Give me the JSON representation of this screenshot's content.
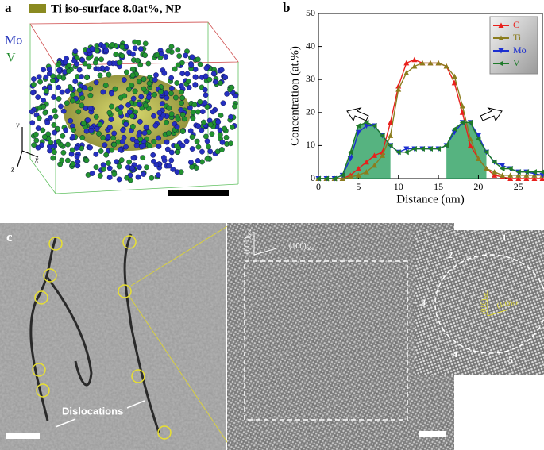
{
  "panel_a": {
    "label": "a",
    "legend": "Ti iso-surface 8.0at%, NP",
    "species": [
      "Mo",
      "V"
    ],
    "axes": [
      "y",
      "x",
      "z"
    ]
  },
  "chart_data": {
    "type": "line",
    "label": "b",
    "xlabel": "Distance (nm)",
    "ylabel": "Concentration (at.%)",
    "x": [
      0,
      1,
      2,
      3,
      4,
      5,
      6,
      7,
      8,
      9,
      10,
      11,
      12,
      13,
      14,
      15,
      16,
      17,
      18,
      19,
      20,
      21,
      22,
      23,
      24,
      25,
      26,
      27,
      28
    ],
    "xlim": [
      0,
      28
    ],
    "xticks": [
      0,
      5,
      10,
      15,
      20,
      25
    ],
    "ylim": [
      0,
      50
    ],
    "yticks": [
      0,
      10,
      20,
      30,
      40,
      50
    ],
    "legend": "upper right",
    "series": [
      {
        "name": "C",
        "color": "#e8201c",
        "values": [
          0,
          0,
          0,
          0,
          1,
          3,
          5,
          7,
          8,
          17,
          28,
          35,
          36,
          35,
          35,
          35,
          34,
          29,
          20,
          10,
          6,
          3,
          1,
          0.5,
          0,
          0,
          0,
          0,
          0
        ]
      },
      {
        "name": "Ti",
        "color": "#8b7d1e",
        "values": [
          0,
          0,
          0,
          0,
          0.5,
          1,
          2,
          4,
          7,
          13,
          27,
          32,
          34,
          35,
          35,
          35,
          34,
          31,
          22,
          12,
          6,
          3,
          2,
          1,
          1,
          1,
          1,
          1,
          1
        ]
      },
      {
        "name": "Mo",
        "color": "#1c2fd0",
        "values": [
          0,
          0,
          0,
          1,
          6,
          14,
          16,
          16,
          13,
          10,
          8,
          9,
          9,
          9,
          9,
          9,
          10,
          14,
          17,
          17,
          13,
          8,
          5,
          4,
          3,
          2,
          2,
          1.5,
          1
        ]
      },
      {
        "name": "V",
        "color": "#1e7a2a",
        "values": [
          0,
          0,
          0,
          1,
          8,
          16,
          17,
          16,
          13,
          10,
          8,
          8,
          9,
          9,
          9,
          9,
          10,
          15,
          17,
          17,
          12,
          8,
          5,
          3,
          3,
          2,
          2,
          2,
          2
        ]
      }
    ]
  },
  "panel_c": {
    "label": "c",
    "annotation": "Dislocations",
    "directions": [
      {
        "label": "(001)",
        "sub": "bcc"
      },
      {
        "label": "(100)",
        "sub": "bcc"
      }
    ],
    "inset_directions": [
      {
        "label": "(010)",
        "sub": "NP"
      },
      {
        "label": "(100)",
        "sub": "NP"
      }
    ],
    "facets": [
      "1",
      "2",
      "3",
      "4",
      "5"
    ]
  }
}
